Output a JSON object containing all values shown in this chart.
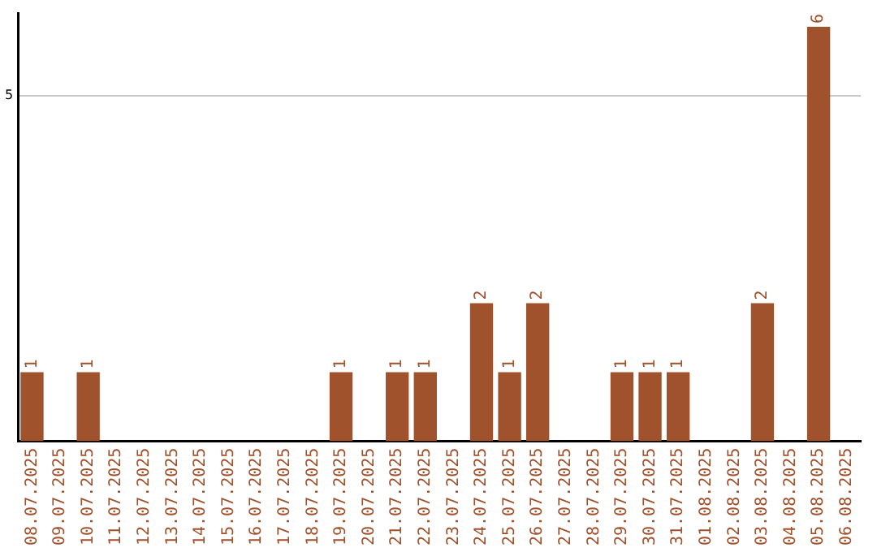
{
  "chart_data": {
    "type": "bar",
    "categories": [
      "08.07.2025",
      "09.07.2025",
      "10.07.2025",
      "11.07.2025",
      "12.07.2025",
      "13.07.2025",
      "14.07.2025",
      "15.07.2025",
      "16.07.2025",
      "17.07.2025",
      "18.07.2025",
      "19.07.2025",
      "20.07.2025",
      "21.07.2025",
      "22.07.2025",
      "23.07.2025",
      "24.07.2025",
      "25.07.2025",
      "26.07.2025",
      "27.07.2025",
      "28.07.2025",
      "29.07.2025",
      "30.07.2025",
      "31.07.2025",
      "01.08.2025",
      "02.08.2025",
      "03.08.2025",
      "04.08.2025",
      "05.08.2025",
      "06.08.2025"
    ],
    "values": [
      1,
      0,
      1,
      0,
      0,
      0,
      0,
      0,
      0,
      0,
      0,
      1,
      0,
      1,
      1,
      0,
      2,
      1,
      2,
      0,
      0,
      1,
      1,
      1,
      0,
      0,
      2,
      0,
      6,
      0
    ],
    "value_labels": [
      "1",
      null,
      "1",
      null,
      null,
      null,
      null,
      null,
      null,
      null,
      null,
      "1",
      null,
      "1",
      "1",
      null,
      "2",
      "1",
      "2",
      null,
      null,
      "1",
      "1",
      "1",
      null,
      null,
      "2",
      null,
      "6",
      null
    ],
    "color": "#a0522d",
    "ylim": [
      0,
      6.2
    ],
    "yticks": [
      5
    ],
    "grid": "y",
    "legend": false
  }
}
